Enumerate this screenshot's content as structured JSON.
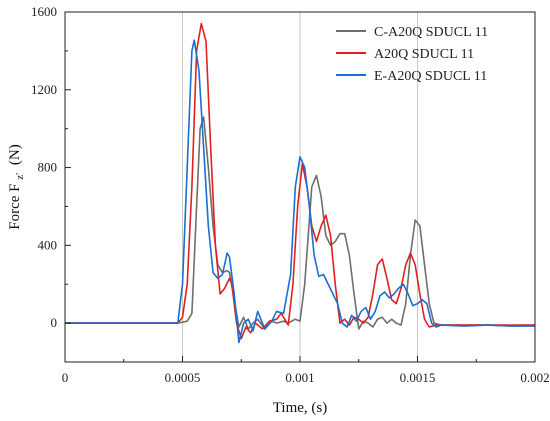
{
  "chart_data": {
    "type": "line",
    "xlabel": "Time, (s)",
    "ylabel_main": "Force F",
    "ylabel_sub": "z'",
    "ylabel_unit": "(N)",
    "xlim": [
      0,
      0.002
    ],
    "ylim": [
      -200,
      1600
    ],
    "x_ticks": [
      0,
      0.0005,
      0.001,
      0.0015,
      0.002
    ],
    "x_tick_labels": [
      "0",
      "0.0005",
      "0.001",
      "0.0015",
      "0.002"
    ],
    "y_ticks": [
      0,
      400,
      800,
      1200,
      1600
    ],
    "y_tick_labels": [
      "0",
      "400",
      "800",
      "1200",
      "1600"
    ],
    "grid": "x-only",
    "legend_position": "top-right",
    "series": [
      {
        "name": "C-A20Q SDUCL 11",
        "color": "#6e6e6e",
        "points": [
          [
            0,
            0
          ],
          [
            0.0004,
            0
          ],
          [
            0.00048,
            0
          ],
          [
            0.00052,
            10
          ],
          [
            0.00054,
            50
          ],
          [
            0.00056,
            600
          ],
          [
            0.000575,
            1000
          ],
          [
            0.00059,
            1060
          ],
          [
            0.00061,
            800
          ],
          [
            0.00063,
            500
          ],
          [
            0.00065,
            300
          ],
          [
            0.00067,
            260
          ],
          [
            0.00069,
            270
          ],
          [
            0.0007,
            260
          ],
          [
            0.00072,
            120
          ],
          [
            0.00074,
            -20
          ],
          [
            0.00076,
            30
          ],
          [
            0.00078,
            -30
          ],
          [
            0.0008,
            0
          ],
          [
            0.00082,
            20
          ],
          [
            0.00085,
            -30
          ],
          [
            0.00088,
            10
          ],
          [
            0.0009,
            0
          ],
          [
            0.00093,
            10
          ],
          [
            0.00095,
            0
          ],
          [
            0.00098,
            20
          ],
          [
            0.001,
            10
          ],
          [
            0.00102,
            200
          ],
          [
            0.00105,
            700
          ],
          [
            0.00107,
            760
          ],
          [
            0.00109,
            650
          ],
          [
            0.00111,
            450
          ],
          [
            0.00113,
            400
          ],
          [
            0.00115,
            420
          ],
          [
            0.00117,
            460
          ],
          [
            0.00119,
            460
          ],
          [
            0.00121,
            350
          ],
          [
            0.00123,
            150
          ],
          [
            0.00125,
            -30
          ],
          [
            0.00127,
            10
          ],
          [
            0.00129,
            0
          ],
          [
            0.00131,
            -20
          ],
          [
            0.00133,
            20
          ],
          [
            0.00135,
            30
          ],
          [
            0.00137,
            0
          ],
          [
            0.00139,
            20
          ],
          [
            0.00141,
            0
          ],
          [
            0.00143,
            -10
          ],
          [
            0.00145,
            100
          ],
          [
            0.00147,
            350
          ],
          [
            0.00149,
            530
          ],
          [
            0.00151,
            500
          ],
          [
            0.00153,
            300
          ],
          [
            0.00155,
            100
          ],
          [
            0.00157,
            0
          ],
          [
            0.0016,
            -10
          ],
          [
            0.0017,
            -10
          ],
          [
            0.0018,
            -10
          ],
          [
            0.0019,
            -15
          ],
          [
            0.002,
            -10
          ]
        ]
      },
      {
        "name": "A20Q SDUCL 11",
        "color": "#e02020",
        "points": [
          [
            0,
            0
          ],
          [
            0.0004,
            0
          ],
          [
            0.00048,
            0
          ],
          [
            0.0005,
            30
          ],
          [
            0.00052,
            200
          ],
          [
            0.00054,
            700
          ],
          [
            0.00056,
            1400
          ],
          [
            0.00058,
            1540
          ],
          [
            0.0006,
            1450
          ],
          [
            0.00062,
            900
          ],
          [
            0.00064,
            400
          ],
          [
            0.00066,
            150
          ],
          [
            0.00068,
            180
          ],
          [
            0.0007,
            230
          ],
          [
            0.00071,
            200
          ],
          [
            0.00073,
            0
          ],
          [
            0.00075,
            -80
          ],
          [
            0.00077,
            -20
          ],
          [
            0.00079,
            -50
          ],
          [
            0.00081,
            0
          ],
          [
            0.00084,
            -30
          ],
          [
            0.00087,
            10
          ],
          [
            0.0009,
            20
          ],
          [
            0.00092,
            50
          ],
          [
            0.00095,
            -10
          ],
          [
            0.00097,
            200
          ],
          [
            0.00099,
            600
          ],
          [
            0.00101,
            820
          ],
          [
            0.00103,
            700
          ],
          [
            0.00105,
            500
          ],
          [
            0.00107,
            420
          ],
          [
            0.00109,
            500
          ],
          [
            0.00111,
            555
          ],
          [
            0.00113,
            450
          ],
          [
            0.00115,
            200
          ],
          [
            0.00117,
            0
          ],
          [
            0.00119,
            20
          ],
          [
            0.00121,
            -10
          ],
          [
            0.00123,
            30
          ],
          [
            0.00125,
            20
          ],
          [
            0.00127,
            0
          ],
          [
            0.00129,
            30
          ],
          [
            0.00131,
            150
          ],
          [
            0.00133,
            300
          ],
          [
            0.00135,
            330
          ],
          [
            0.00137,
            230
          ],
          [
            0.00139,
            120
          ],
          [
            0.00141,
            100
          ],
          [
            0.00143,
            180
          ],
          [
            0.00145,
            300
          ],
          [
            0.00147,
            360
          ],
          [
            0.00149,
            300
          ],
          [
            0.00151,
            150
          ],
          [
            0.00153,
            20
          ],
          [
            0.00155,
            -20
          ],
          [
            0.00158,
            -10
          ],
          [
            0.0017,
            -10
          ],
          [
            0.0018,
            -10
          ],
          [
            0.0019,
            -10
          ],
          [
            0.002,
            -10
          ]
        ]
      },
      {
        "name": "E-A20Q SDUCL 11",
        "color": "#1a6fd0",
        "points": [
          [
            0,
            0
          ],
          [
            0.0004,
            0
          ],
          [
            0.00048,
            0
          ],
          [
            0.0005,
            200
          ],
          [
            0.00052,
            800
          ],
          [
            0.00054,
            1400
          ],
          [
            0.00055,
            1455
          ],
          [
            0.00057,
            1300
          ],
          [
            0.00059,
            900
          ],
          [
            0.00061,
            500
          ],
          [
            0.00063,
            260
          ],
          [
            0.00065,
            230
          ],
          [
            0.00067,
            250
          ],
          [
            0.00069,
            360
          ],
          [
            0.0007,
            340
          ],
          [
            0.00072,
            150
          ],
          [
            0.00074,
            -100
          ],
          [
            0.00076,
            0
          ],
          [
            0.00078,
            20
          ],
          [
            0.0008,
            -40
          ],
          [
            0.00082,
            60
          ],
          [
            0.00085,
            -30
          ],
          [
            0.00088,
            10
          ],
          [
            0.0009,
            60
          ],
          [
            0.00093,
            50
          ],
          [
            0.00096,
            250
          ],
          [
            0.00098,
            700
          ],
          [
            0.001,
            855
          ],
          [
            0.00102,
            800
          ],
          [
            0.00104,
            600
          ],
          [
            0.00106,
            350
          ],
          [
            0.00108,
            240
          ],
          [
            0.0011,
            250
          ],
          [
            0.00112,
            200
          ],
          [
            0.00114,
            150
          ],
          [
            0.00116,
            100
          ],
          [
            0.00118,
            0
          ],
          [
            0.0012,
            -20
          ],
          [
            0.00122,
            40
          ],
          [
            0.00124,
            10
          ],
          [
            0.00126,
            60
          ],
          [
            0.00128,
            80
          ],
          [
            0.0013,
            20
          ],
          [
            0.00132,
            60
          ],
          [
            0.00134,
            140
          ],
          [
            0.00136,
            160
          ],
          [
            0.00138,
            130
          ],
          [
            0.0014,
            150
          ],
          [
            0.00142,
            180
          ],
          [
            0.00144,
            200
          ],
          [
            0.00146,
            150
          ],
          [
            0.00148,
            90
          ],
          [
            0.0015,
            100
          ],
          [
            0.00152,
            120
          ],
          [
            0.00154,
            100
          ],
          [
            0.00156,
            0
          ],
          [
            0.00158,
            -20
          ],
          [
            0.0016,
            -10
          ],
          [
            0.0017,
            -15
          ],
          [
            0.0018,
            -10
          ],
          [
            0.0019,
            -15
          ],
          [
            0.002,
            -15
          ]
        ]
      }
    ]
  }
}
